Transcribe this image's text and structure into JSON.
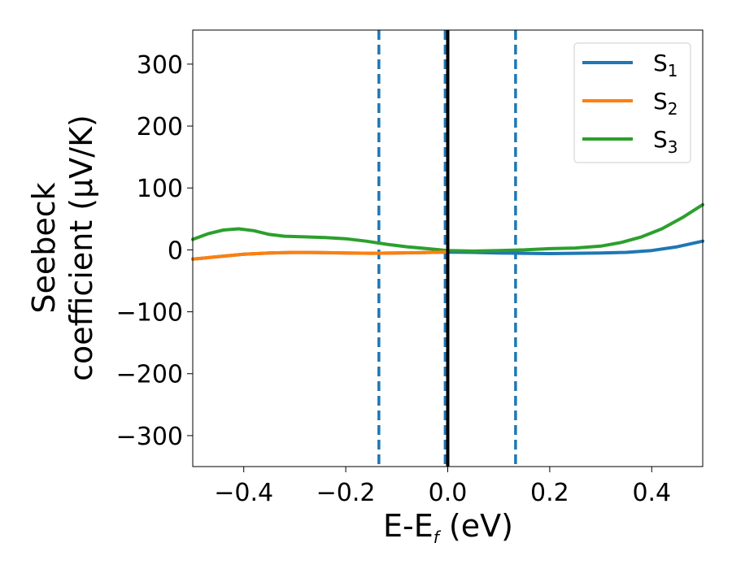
{
  "chart_data": {
    "type": "line",
    "xlim": [
      -0.5,
      0.5
    ],
    "ylim": [
      -350,
      355
    ],
    "xticks": [
      -0.4,
      -0.2,
      0.0,
      0.2,
      0.4
    ],
    "xtick_labels": [
      "−0.4",
      "−0.2",
      "0.0",
      "0.2",
      "0.4"
    ],
    "yticks": [
      -300,
      -200,
      -100,
      0,
      100,
      200,
      300
    ],
    "ytick_labels": [
      "−300",
      "−200",
      "−100",
      "0",
      "100",
      "200",
      "300"
    ],
    "xlabel": {
      "main": "E-E",
      "sub": "f",
      "unit": " (eV)"
    },
    "ylabel": {
      "line1": "Seebeck",
      "line2": "coefficient  (μV/K)"
    },
    "grid": false,
    "legend_position": "top-right",
    "vlines": [
      {
        "x": -0.135,
        "style": "dashed",
        "color": "#1f77b4"
      },
      {
        "x": -0.005,
        "style": "dashed",
        "color": "#1f77b4"
      },
      {
        "x": 0.133,
        "style": "dashed",
        "color": "#1f77b4"
      },
      {
        "x": 0.0,
        "style": "solid",
        "color": "#000000"
      }
    ],
    "series": [
      {
        "name": "S",
        "sub": "1",
        "color": "#1f77b4",
        "x": [
          -0.5,
          -0.45,
          -0.4,
          -0.35,
          -0.3,
          -0.25,
          -0.2,
          -0.15,
          -0.1,
          -0.05,
          0.0,
          0.05,
          0.1,
          0.15,
          0.2,
          0.25,
          0.3,
          0.35,
          0.4,
          0.45,
          0.5
        ],
        "y": [
          -15,
          -11,
          -7,
          -5,
          -4,
          -4.5,
          -5,
          -5.5,
          -5,
          -4.5,
          -3.5,
          -4,
          -5,
          -5.5,
          -6,
          -5.5,
          -5,
          -4,
          -1,
          5,
          14
        ]
      },
      {
        "name": "S",
        "sub": "2",
        "color": "#ff7f0e",
        "x": [
          -0.5,
          -0.45,
          -0.4,
          -0.35,
          -0.3,
          -0.25,
          -0.2,
          -0.15,
          -0.1,
          -0.05,
          0.0
        ],
        "y": [
          -15,
          -11,
          -7,
          -5,
          -4,
          -4.5,
          -5,
          -5.5,
          -5,
          -4.5,
          -3.5
        ]
      },
      {
        "name": "S",
        "sub": "3",
        "color": "#2ca02c",
        "x": [
          -0.5,
          -0.47,
          -0.44,
          -0.41,
          -0.38,
          -0.35,
          -0.32,
          -0.28,
          -0.24,
          -0.2,
          -0.16,
          -0.12,
          -0.08,
          -0.04,
          0.0,
          0.05,
          0.1,
          0.15,
          0.2,
          0.25,
          0.3,
          0.34,
          0.38,
          0.42,
          0.46,
          0.5
        ],
        "y": [
          17,
          26,
          32,
          34,
          31,
          25,
          22,
          21,
          20,
          18,
          14,
          9,
          5,
          2,
          -1,
          -2,
          -1,
          0,
          2,
          3,
          6,
          12,
          21,
          34,
          52,
          73
        ]
      }
    ]
  }
}
